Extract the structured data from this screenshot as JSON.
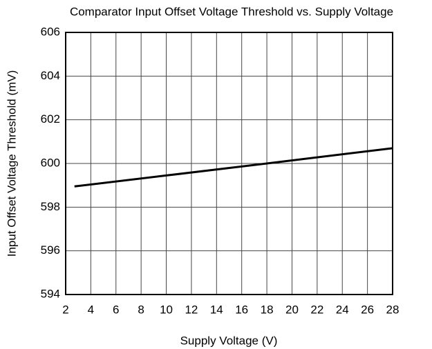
{
  "chart_data": {
    "type": "line",
    "title": "Comparator Input Offset Voltage Threshold vs. Supply Voltage",
    "x_label": "Supply Voltage (V)",
    "y_label": "Input Offset Voltage Threshold (mV)",
    "x": [
      2.7,
      10,
      18,
      28
    ],
    "series": [
      {
        "color": "#000000",
        "values": [
          598.95,
          599.45,
          600.0,
          600.7
        ]
      }
    ],
    "xlim": [
      2,
      28
    ],
    "xticks": [
      2,
      4,
      6,
      8,
      10,
      12,
      14,
      16,
      18,
      20,
      22,
      24,
      26,
      28
    ],
    "ylim": [
      594,
      606
    ],
    "yticks": [
      594,
      596,
      598,
      600,
      602,
      604,
      606
    ],
    "grid": true
  }
}
